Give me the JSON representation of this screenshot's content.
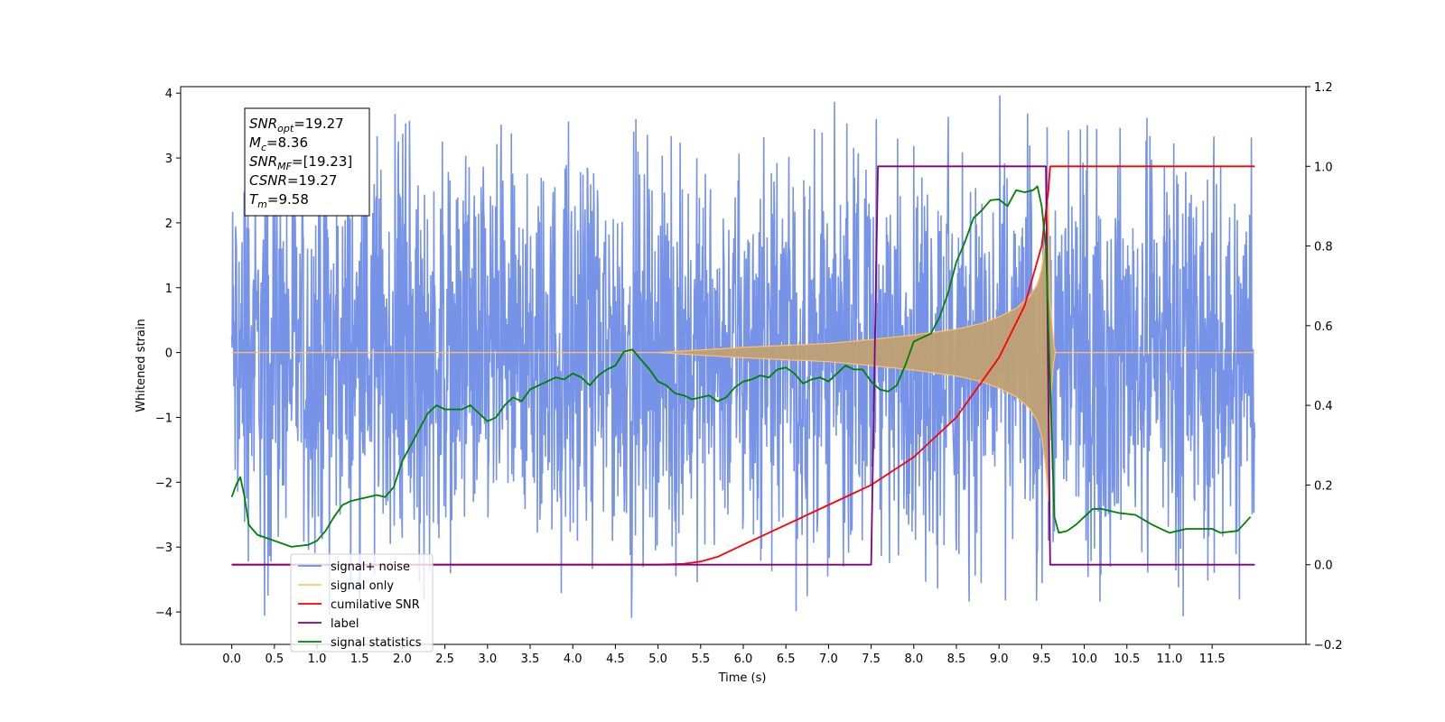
{
  "chart_data": {
    "type": "line",
    "xlabel": "Time (s)",
    "ylabel_left": "Whitened strain",
    "ylabel_right": "",
    "xlim": [
      -0.6,
      12.6
    ],
    "ylim_left": [
      -4.5,
      4.1
    ],
    "ylim_right": [
      -0.2,
      1.2
    ],
    "x_ticks": [
      "0.0",
      "0.5",
      "1.0",
      "1.5",
      "2.0",
      "2.5",
      "3.0",
      "3.5",
      "4.0",
      "4.5",
      "5.0",
      "5.5",
      "6.0",
      "6.5",
      "7.0",
      "7.5",
      "8.0",
      "8.5",
      "9.0",
      "9.5",
      "10.0",
      "10.5",
      "11.0",
      "11.5"
    ],
    "y_ticks_left": [
      "4",
      "3",
      "2",
      "1",
      "0",
      "−1",
      "−2",
      "−3",
      "−4"
    ],
    "y_ticks_right": [
      "1.2",
      "1.0",
      "0.8",
      "0.6",
      "0.4",
      "0.2",
      "0.0",
      "−0.2"
    ],
    "info_box": {
      "lines": [
        {
          "base": "SNR",
          "sub": "opt",
          "value": "=19.27"
        },
        {
          "base": "M",
          "sub": "c",
          "value": "=8.36"
        },
        {
          "base": "SNR",
          "sub": "MF",
          "value": "=[19.23]"
        },
        {
          "base": "CSNR",
          "sub": "",
          "value": "=19.27"
        },
        {
          "base": "T",
          "sub": "m",
          "value": "=9.58"
        }
      ]
    },
    "legend": {
      "placement": "lower-left",
      "entries": [
        {
          "label": "signal+ noise",
          "color": "#6f8de6"
        },
        {
          "label": "signal only",
          "color": "#ffc266"
        },
        {
          "label": "cumilative SNR",
          "color": "#ff0000"
        },
        {
          "label": "label",
          "color": "#800080"
        },
        {
          "label": "signal statistics",
          "color": "#008000"
        }
      ]
    },
    "series": [
      {
        "name": "signal+ noise",
        "axis": "left",
        "kind": "noise_band",
        "x_range": [
          0.0,
          12.0
        ],
        "envelope": [
          -1.4,
          1.4
        ],
        "spike_range": [
          -4.1,
          3.7
        ],
        "color": "#6f8de6"
      },
      {
        "name": "signal only",
        "axis": "left",
        "kind": "chirp_envelope",
        "x": [
          0.0,
          5.0,
          6.0,
          7.0,
          7.5,
          8.0,
          8.5,
          8.8,
          9.0,
          9.2,
          9.35,
          9.45,
          9.5,
          9.55,
          9.58,
          9.6,
          9.65,
          12.0
        ],
        "amplitude": [
          0.0,
          0.0,
          0.08,
          0.14,
          0.2,
          0.27,
          0.36,
          0.45,
          0.55,
          0.68,
          0.85,
          1.05,
          1.3,
          1.8,
          2.3,
          0.8,
          0.0,
          0.0
        ],
        "color": "#c0a073"
      },
      {
        "name": "cumilative SNR",
        "axis": "right",
        "x": [
          0.0,
          5.0,
          5.3,
          5.5,
          5.7,
          6.0,
          6.5,
          7.0,
          7.5,
          8.0,
          8.5,
          9.0,
          9.3,
          9.5,
          9.58,
          9.6,
          12.0
        ],
        "y": [
          0.0,
          0.0,
          0.002,
          0.008,
          0.02,
          0.05,
          0.1,
          0.15,
          0.2,
          0.27,
          0.37,
          0.52,
          0.65,
          0.8,
          0.94,
          1.0,
          1.0
        ],
        "color": "#ff0000"
      },
      {
        "name": "label",
        "axis": "right",
        "x": [
          0.0,
          7.5,
          7.58,
          9.55,
          9.6,
          12.0
        ],
        "y": [
          0.0,
          0.0,
          1.0,
          1.0,
          0.0,
          0.0
        ],
        "color": "#800080"
      },
      {
        "name": "signal statistics",
        "axis": "right",
        "x": [
          0.0,
          0.05,
          0.1,
          0.15,
          0.2,
          0.3,
          0.5,
          0.7,
          0.9,
          1.0,
          1.1,
          1.2,
          1.3,
          1.4,
          1.5,
          1.6,
          1.7,
          1.8,
          1.9,
          2.0,
          2.1,
          2.2,
          2.3,
          2.4,
          2.5,
          2.6,
          2.7,
          2.8,
          2.9,
          3.0,
          3.1,
          3.2,
          3.3,
          3.4,
          3.5,
          3.6,
          3.7,
          3.8,
          3.9,
          4.0,
          4.1,
          4.2,
          4.3,
          4.4,
          4.5,
          4.6,
          4.7,
          4.8,
          4.9,
          5.0,
          5.1,
          5.2,
          5.3,
          5.4,
          5.5,
          5.6,
          5.7,
          5.8,
          5.9,
          6.0,
          6.1,
          6.2,
          6.3,
          6.4,
          6.5,
          6.6,
          6.7,
          6.8,
          6.9,
          7.0,
          7.1,
          7.2,
          7.3,
          7.4,
          7.5,
          7.6,
          7.7,
          7.8,
          7.9,
          8.0,
          8.1,
          8.2,
          8.3,
          8.4,
          8.5,
          8.6,
          8.7,
          8.8,
          8.9,
          9.0,
          9.1,
          9.2,
          9.3,
          9.4,
          9.45,
          9.5,
          9.55,
          9.6,
          9.65,
          9.7,
          9.8,
          9.9,
          10.0,
          10.1,
          10.2,
          10.4,
          10.6,
          10.8,
          11.0,
          11.2,
          11.4,
          11.5,
          11.6,
          11.8,
          11.95
        ],
        "y": [
          0.17,
          0.2,
          0.22,
          0.17,
          0.1,
          0.075,
          0.06,
          0.045,
          0.05,
          0.06,
          0.085,
          0.12,
          0.15,
          0.16,
          0.165,
          0.17,
          0.175,
          0.17,
          0.195,
          0.26,
          0.3,
          0.34,
          0.38,
          0.4,
          0.39,
          0.39,
          0.39,
          0.4,
          0.38,
          0.36,
          0.37,
          0.4,
          0.42,
          0.41,
          0.44,
          0.45,
          0.46,
          0.47,
          0.465,
          0.48,
          0.47,
          0.45,
          0.475,
          0.49,
          0.5,
          0.535,
          0.54,
          0.515,
          0.49,
          0.46,
          0.45,
          0.43,
          0.425,
          0.415,
          0.42,
          0.425,
          0.41,
          0.42,
          0.445,
          0.46,
          0.465,
          0.475,
          0.47,
          0.49,
          0.495,
          0.48,
          0.455,
          0.465,
          0.47,
          0.46,
          0.48,
          0.5,
          0.49,
          0.49,
          0.46,
          0.44,
          0.435,
          0.45,
          0.5,
          0.56,
          0.57,
          0.58,
          0.62,
          0.68,
          0.76,
          0.81,
          0.87,
          0.89,
          0.915,
          0.917,
          0.9,
          0.94,
          0.935,
          0.94,
          0.95,
          0.9,
          0.8,
          0.45,
          0.12,
          0.08,
          0.085,
          0.1,
          0.12,
          0.14,
          0.14,
          0.13,
          0.125,
          0.1,
          0.08,
          0.09,
          0.09,
          0.09,
          0.08,
          0.085,
          0.12
        ],
        "color": "#008000"
      }
    ]
  }
}
